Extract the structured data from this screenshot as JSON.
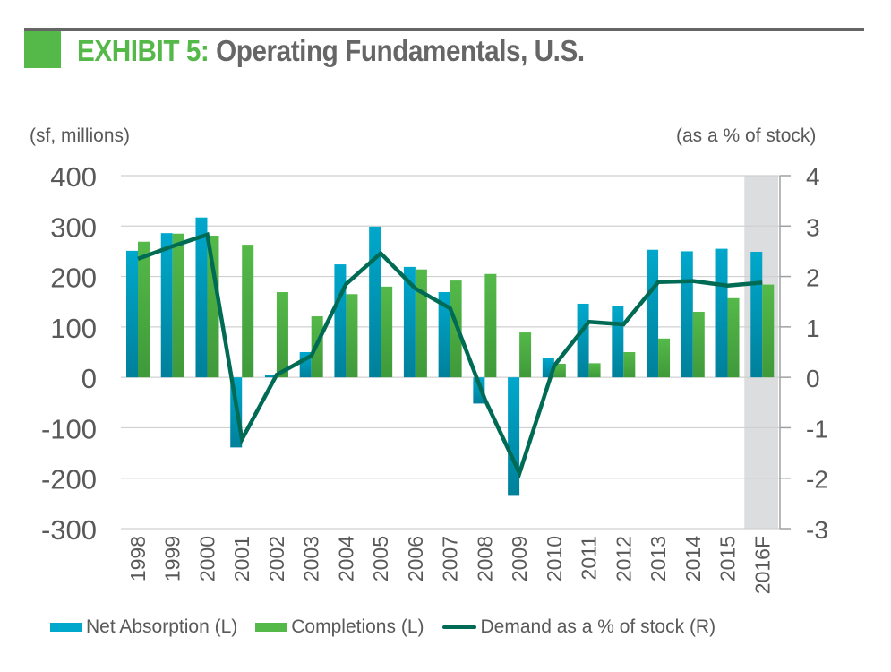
{
  "header": {
    "exhibit_label": "EXHIBIT 5:",
    "title_text": " Operating Fundamentals, U.S."
  },
  "colors": {
    "accent_green": "#55b949",
    "rule_gray": "#666666",
    "net_absorption": "#00a8cc",
    "net_absorption_dark": "#00809a",
    "completions": "#55b949",
    "completions_dark": "#3f9a3a",
    "demand_line": "#006b55",
    "forecast_shade": "#dcdddf",
    "grid": "#d0d0d0",
    "text": "#595959"
  },
  "chart_data": {
    "type": "bar",
    "title": "EXHIBIT 5: Operating Fundamentals, U.S.",
    "left_axis_label": "(sf, millions)",
    "right_axis_label": "(as a % of stock)",
    "categories": [
      "1998",
      "1999",
      "2000",
      "2001",
      "2002",
      "2003",
      "2004",
      "2005",
      "2006",
      "2007",
      "2008",
      "2009",
      "2010",
      "2011",
      "2012",
      "2013",
      "2014",
      "2015",
      "2016F"
    ],
    "forecast_category": "2016F",
    "ylim_left": [
      -300,
      400
    ],
    "yticks_left": [
      -300,
      -200,
      -100,
      0,
      100,
      200,
      300,
      400
    ],
    "ylim_right": [
      -3,
      4
    ],
    "yticks_right": [
      -3,
      -2,
      -1,
      0,
      1,
      2,
      3,
      4
    ],
    "grid": true,
    "legend_position": "bottom",
    "series": [
      {
        "name": "Net Absorption (L)",
        "type": "bar",
        "axis": "left",
        "values": [
          251,
          286,
          317,
          -139,
          5,
          50,
          224,
          299,
          219,
          169,
          -52,
          -235,
          39,
          146,
          142,
          253,
          250,
          255,
          249
        ]
      },
      {
        "name": "Completions (L)",
        "type": "bar",
        "axis": "left",
        "values": [
          269,
          285,
          281,
          263,
          169,
          121,
          165,
          180,
          214,
          192,
          205,
          89,
          27,
          28,
          50,
          77,
          130,
          157,
          184
        ]
      },
      {
        "name": "Demand as a % of stock (R)",
        "type": "line",
        "axis": "right",
        "values": [
          2.35,
          2.6,
          2.83,
          -1.23,
          0.05,
          0.43,
          1.85,
          2.46,
          1.76,
          1.37,
          -0.43,
          -1.9,
          0.23,
          1.1,
          1.05,
          1.89,
          1.91,
          1.82,
          1.88
        ]
      }
    ]
  }
}
